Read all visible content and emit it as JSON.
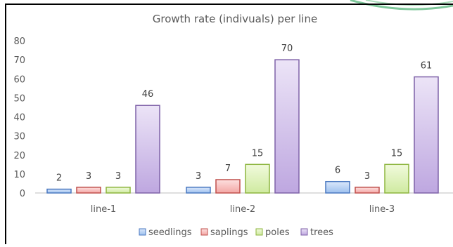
{
  "chart_data": {
    "type": "bar",
    "title": "Growth rate (indivuals) per line",
    "xlabel": "",
    "ylabel": "",
    "categories": [
      "line-1",
      "line-2",
      "line-3"
    ],
    "ylim": [
      0,
      80
    ],
    "yticks": [
      0,
      10,
      20,
      30,
      40,
      50,
      60,
      70,
      80
    ],
    "grid": false,
    "legend_position": "bottom",
    "series": [
      {
        "name": "seedlings",
        "values": [
          2,
          3,
          6
        ],
        "fill_top": "#dbe8fb",
        "fill_bottom": "#9dc0ee",
        "stroke": "#4a78c0"
      },
      {
        "name": "saplings",
        "values": [
          3,
          7,
          3
        ],
        "fill_top": "#fde0df",
        "fill_bottom": "#f3a6a4",
        "stroke": "#c0504d"
      },
      {
        "name": "poles",
        "values": [
          3,
          15,
          15
        ],
        "fill_top": "#f1fadd",
        "fill_bottom": "#cfeaa0",
        "stroke": "#8db53e"
      },
      {
        "name": "trees",
        "values": [
          46,
          70,
          61
        ],
        "fill_top": "#ece4f7",
        "fill_bottom": "#bea7e0",
        "stroke": "#7f62a8"
      }
    ]
  }
}
